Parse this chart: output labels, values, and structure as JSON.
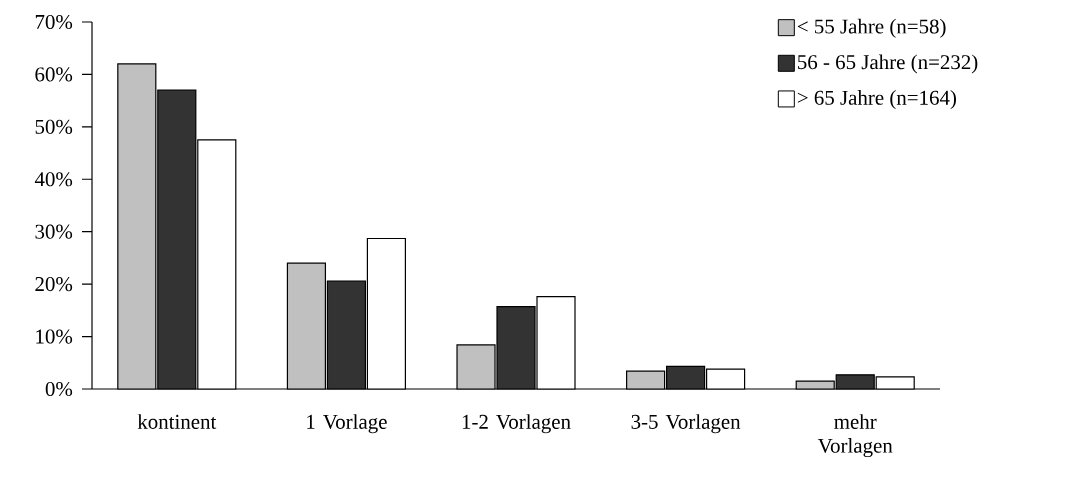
{
  "chart_data": {
    "type": "bar",
    "categories": [
      "kontinent",
      "1 Vorlage",
      "1-2 Vorlagen",
      "3-5 Vorlagen",
      "mehr Vorlagen"
    ],
    "series": [
      {
        "name": "< 55 Jahre (n=58)",
        "color": "#c0c0c0",
        "values": [
          62,
          24,
          8.4,
          3.4,
          1.5
        ]
      },
      {
        "name": "56 - 65 Jahre (n=232)",
        "color": "#333333",
        "values": [
          57,
          20.6,
          15.7,
          4.3,
          2.7
        ]
      },
      {
        "name": "> 65 Jahre (n=164)",
        "color": "#ffffff",
        "values": [
          47.5,
          28.7,
          17.6,
          3.8,
          2.3
        ]
      }
    ],
    "ylim": [
      0,
      70
    ],
    "yticks": [
      {
        "value": 0,
        "label": "0%"
      },
      {
        "value": 10,
        "label": "10%"
      },
      {
        "value": 20,
        "label": "20%"
      },
      {
        "value": 30,
        "label": "30%"
      },
      {
        "value": 40,
        "label": "40%"
      },
      {
        "value": 50,
        "label": "50%"
      },
      {
        "value": 60,
        "label": "60%"
      },
      {
        "value": 70,
        "label": "70%"
      }
    ],
    "grid": false,
    "legend": "top right"
  }
}
